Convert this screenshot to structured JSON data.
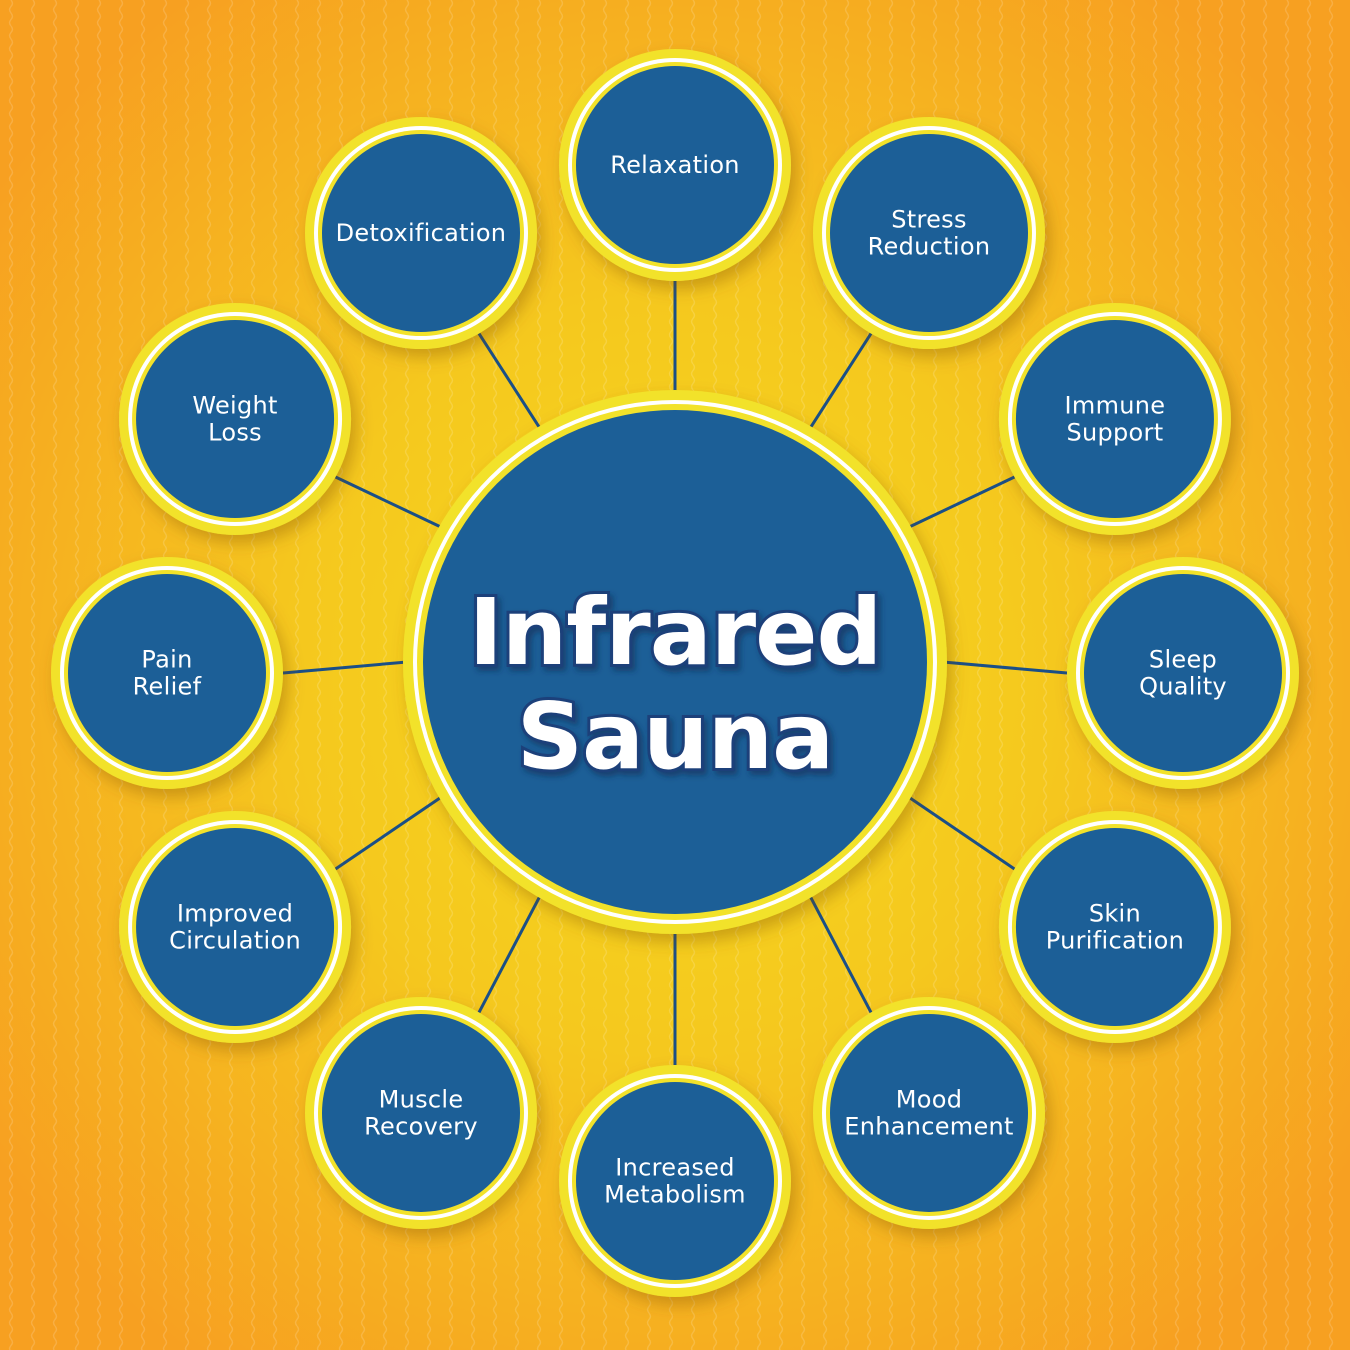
{
  "title": {
    "line1": "Infrared",
    "line2": "Sauna"
  },
  "benefits": [
    {
      "id": "relaxation",
      "lines": [
        "Relaxation"
      ]
    },
    {
      "id": "stress-reduction",
      "lines": [
        "Stress",
        "Reduction"
      ]
    },
    {
      "id": "immune-support",
      "lines": [
        "Immune",
        "Support"
      ]
    },
    {
      "id": "sleep-quality",
      "lines": [
        "Sleep",
        "Quality"
      ]
    },
    {
      "id": "skin-purification",
      "lines": [
        "Skin",
        "Purification"
      ]
    },
    {
      "id": "mood-enhancement",
      "lines": [
        "Mood",
        "Enhancement"
      ]
    },
    {
      "id": "increased-metabolism",
      "lines": [
        "Increased",
        "Metabolism"
      ]
    },
    {
      "id": "muscle-recovery",
      "lines": [
        "Muscle",
        "Recovery"
      ]
    },
    {
      "id": "improved-circulation",
      "lines": [
        "Improved",
        "Circulation"
      ]
    },
    {
      "id": "pain-relief",
      "lines": [
        "Pain",
        "Relief"
      ]
    },
    {
      "id": "weight-loss",
      "lines": [
        "Weight",
        "Loss"
      ]
    },
    {
      "id": "detoxification",
      "lines": [
        "Detoxification"
      ]
    }
  ],
  "colors": {
    "background_outer": "#f7a021",
    "background_inner": "#f5d219",
    "circle_fill": "#1b5e97",
    "circle_ring": "#f2e22a",
    "circle_inner_ring": "#ffffff",
    "connector": "#1b4f86",
    "label_text": "#ffffff"
  }
}
